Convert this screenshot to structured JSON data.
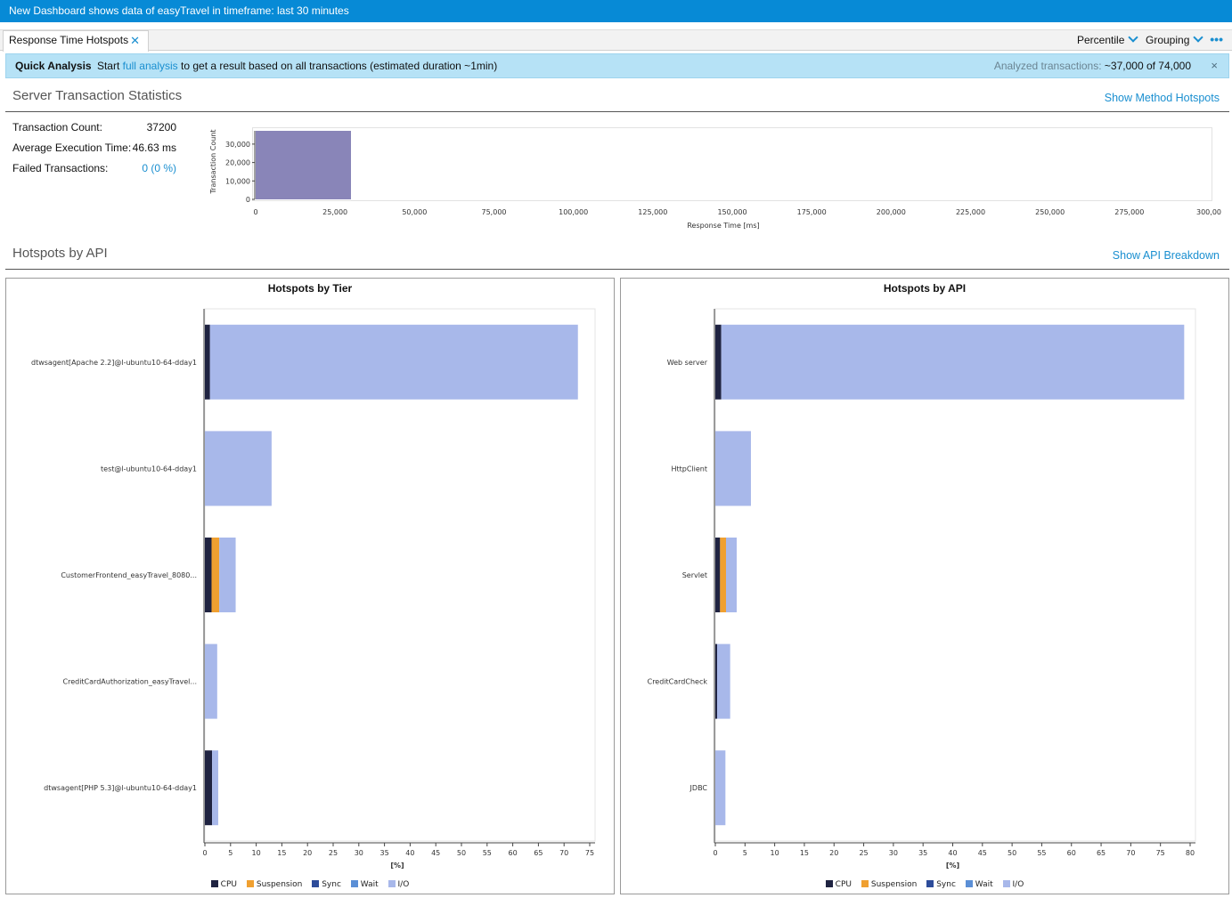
{
  "window": {
    "title": "New Dashboard shows data of easyTravel in timeframe: last 30 minutes"
  },
  "tabs": [
    {
      "label": "Response Time Hotspots",
      "close": "✕"
    }
  ],
  "toolbar": {
    "percentile": "Percentile",
    "grouping": "Grouping",
    "more": "•••"
  },
  "infobar": {
    "title": "Quick Analysis",
    "start": "Start",
    "link": "full analysis",
    "rest": "to get a result based on all transactions (estimated duration ~1min)",
    "analyzed_label": "Analyzed transactions:",
    "analyzed_value": "~37,000 of 74,000",
    "close": "×"
  },
  "server_stats": {
    "title": "Server Transaction Statistics",
    "link": "Show Method Hotspots",
    "rows": [
      {
        "label": "Transaction Count:",
        "value": "37200"
      },
      {
        "label": "Average Execution Time:",
        "value": "46.63 ms"
      },
      {
        "label": "Failed Transactions:",
        "value": "0 (0 %)"
      }
    ]
  },
  "hotspots": {
    "title": "Hotspots by API",
    "link": "Show API Breakdown"
  },
  "legend_labels": [
    "CPU",
    "Suspension",
    "Sync",
    "Wait",
    "I/O"
  ],
  "colors": {
    "cpu": "#1f2341",
    "suspension": "#f0a030",
    "sync": "#2d4c9a",
    "wait": "#5b8fd6",
    "io": "#a8b8ea",
    "histogram": "#8985b8",
    "accent": "#1a8fd0"
  },
  "chart_data": [
    {
      "type": "bar",
      "categories": [
        "0-30,000"
      ],
      "values": [
        37200
      ],
      "xlabel": "Response Time [ms]",
      "ylabel": "Transaction Count",
      "xlim": [
        0,
        300000
      ],
      "ylim": [
        0,
        37200
      ],
      "xticks": [
        "0",
        "25,000",
        "50,000",
        "75,000",
        "100,000",
        "125,000",
        "150,000",
        "175,000",
        "200,000",
        "225,000",
        "250,000",
        "275,000",
        "300,00"
      ],
      "yticks": [
        "0",
        "10,000",
        "20,000",
        "30,000"
      ],
      "grid": false
    },
    {
      "type": "bar",
      "title": "Hotspots by Tier",
      "orientation": "horizontal",
      "stacked": true,
      "categories": [
        "dtwsagent[Apache 2.2]@l-ubuntu10-64-dday1",
        "test@l-ubuntu10-64-dday1",
        "CustomerFrontend_easyTravel_8080...",
        "CreditCardAuthorization_easyTravel...",
        "dtwsagent[PHP 5.3]@l-ubuntu10-64-dday1"
      ],
      "series": [
        {
          "name": "CPU",
          "values": [
            1,
            0,
            1.3,
            0,
            1.4
          ]
        },
        {
          "name": "Suspension",
          "values": [
            0,
            0,
            1.5,
            0,
            0
          ]
        },
        {
          "name": "Sync",
          "values": [
            0,
            0,
            0,
            0,
            0
          ]
        },
        {
          "name": "Wait",
          "values": [
            0,
            0,
            0,
            0,
            0
          ]
        },
        {
          "name": "I/O",
          "values": [
            71.7,
            13,
            3.2,
            2.4,
            1.2
          ]
        }
      ],
      "xlabel": "[%]",
      "xlim": [
        0,
        75
      ],
      "xticks": [
        "0",
        "5",
        "10",
        "15",
        "20",
        "25",
        "30",
        "35",
        "40",
        "45",
        "50",
        "55",
        "60",
        "65",
        "70",
        "75"
      ],
      "legend": "bottom"
    },
    {
      "type": "bar",
      "title": "Hotspots by API",
      "orientation": "horizontal",
      "stacked": true,
      "categories": [
        "Web server",
        "HttpClient",
        "Servlet",
        "CreditCardCheck",
        "JDBC"
      ],
      "series": [
        {
          "name": "CPU",
          "values": [
            1,
            0,
            0.8,
            0.3,
            0
          ]
        },
        {
          "name": "Suspension",
          "values": [
            0,
            0,
            1,
            0,
            0
          ]
        },
        {
          "name": "Sync",
          "values": [
            0,
            0,
            0,
            0,
            0
          ]
        },
        {
          "name": "Wait",
          "values": [
            0,
            0,
            0,
            0,
            0
          ]
        },
        {
          "name": "I/O",
          "values": [
            78,
            6,
            1.8,
            2.2,
            1.7
          ]
        }
      ],
      "xlabel": "[%]",
      "xlim": [
        0,
        80
      ],
      "xticks": [
        "0",
        "5",
        "10",
        "15",
        "20",
        "25",
        "30",
        "35",
        "40",
        "45",
        "50",
        "55",
        "60",
        "65",
        "70",
        "75",
        "80"
      ],
      "legend": "bottom"
    }
  ]
}
